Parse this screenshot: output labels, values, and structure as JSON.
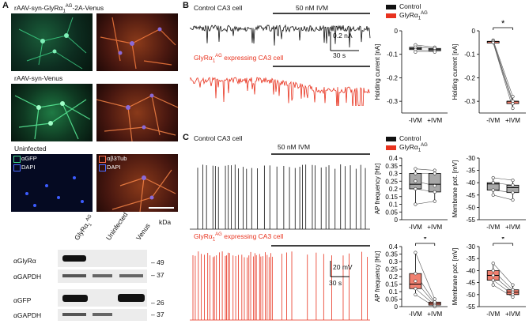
{
  "panel_a": {
    "label": "A",
    "rows": [
      {
        "title": "rAAV-syn-GlyRα1AG-2A-Venus"
      },
      {
        "title": "rAAV-syn-Venus"
      },
      {
        "title": "Uninfected"
      }
    ],
    "legend_green": "αGFP",
    "legend_dapi": "DAPI",
    "legend_red": "αβ3Tub",
    "legend_dapi2": "DAPI",
    "blot": {
      "lanes": [
        "GlyRα1AG",
        "Uninfected",
        "Venus"
      ],
      "kda_label": "kDa",
      "rows": [
        {
          "label": "αGlyRα",
          "marker": "49"
        },
        {
          "label": "αGAPDH",
          "marker": "37"
        },
        {
          "label": "αGFP",
          "marker": "26"
        },
        {
          "label": "αGAPDH",
          "marker": "37"
        }
      ]
    }
  },
  "panel_b": {
    "label": "B",
    "trace1_label": "Control CA3 cell",
    "trace2_label": "GlyRα1AG expressing CA3 cell",
    "drug_label": "50 nM IVM",
    "scale_y": "0.2 nA",
    "scale_x": "30 s",
    "legend_control": "Control",
    "legend_glyr": "GlyRα1AG",
    "ylabel": "Holding current [nA]",
    "star": "*"
  },
  "panel_c": {
    "label": "C",
    "trace1_label": "Control CA3 cell",
    "trace2_label": "GlyRα1AG expressing CA3 cell",
    "drug_label": "50 nM IVM",
    "scale_y": "20 mV",
    "scale_x": "30 s",
    "legend_control": "Control",
    "legend_glyr": "GlyRα1AG",
    "ylabel_freq": "AP frequency [Hz]",
    "ylabel_mem": "Membrane pot. [mV]",
    "star1": "*",
    "star2": "*"
  },
  "colors": {
    "control": "#111111",
    "glyr": "#e8321e",
    "box_gray": "#a8a8a8",
    "box_red": "#f08070"
  },
  "chart_data": [
    {
      "type": "box",
      "ylabel": "Holding current [nA]",
      "categories": [
        "-IVM",
        "+IVM"
      ],
      "ylim": [
        -0.35,
        0.0
      ],
      "yticks": [
        0.0,
        -0.1,
        -0.2,
        -0.3
      ],
      "series": [
        {
          "name": "Control",
          "values": [
            -0.075,
            -0.08
          ],
          "points_pre": [
            -0.06,
            -0.07,
            -0.08,
            -0.09
          ],
          "points_post": [
            -0.07,
            -0.075,
            -0.085,
            -0.09
          ]
        }
      ]
    },
    {
      "type": "box",
      "ylabel": "Holding current [nA]",
      "categories": [
        "-IVM",
        "+IVM"
      ],
      "ylim": [
        -0.35,
        0.0
      ],
      "yticks": [
        0.0,
        -0.1,
        -0.2,
        -0.3
      ],
      "series": [
        {
          "name": "GlyRα1AG",
          "values": [
            -0.045,
            -0.3
          ],
          "points_pre": [
            -0.04,
            -0.045,
            -0.05,
            -0.05
          ],
          "points_post": [
            -0.28,
            -0.3,
            -0.31,
            -0.33
          ]
        }
      ]
    },
    {
      "type": "box",
      "ylabel": "AP frequency [Hz]",
      "categories": [
        "-IVM",
        "+IVM"
      ],
      "ylim": [
        0.0,
        0.4
      ],
      "yticks": [
        0.0,
        0.05,
        0.1,
        0.15,
        0.2,
        0.25,
        0.3,
        0.35,
        0.4
      ],
      "series": [
        {
          "name": "Control",
          "values": [
            0.23,
            0.23
          ],
          "points_pre": [
            0.1,
            0.2,
            0.25,
            0.3,
            0.33
          ],
          "points_post": [
            0.12,
            0.18,
            0.22,
            0.3,
            0.32
          ]
        }
      ]
    },
    {
      "type": "box",
      "ylabel": "Membrane pot. [mV]",
      "categories": [
        "-IVM",
        "+IVM"
      ],
      "ylim": [
        -55,
        -30
      ],
      "yticks": [
        -30,
        -35,
        -40,
        -45,
        -50,
        -55
      ],
      "series": [
        {
          "name": "Control",
          "values": [
            -40.5,
            -42
          ],
          "points_pre": [
            -38,
            -40,
            -43,
            -45
          ],
          "points_post": [
            -39,
            -41,
            -44,
            -47
          ]
        }
      ]
    },
    {
      "type": "box",
      "ylabel": "AP frequency [Hz]",
      "categories": [
        "-IVM",
        "+IVM"
      ],
      "ylim": [
        0.0,
        0.4
      ],
      "yticks": [
        0.0,
        0.05,
        0.1,
        0.15,
        0.2,
        0.25,
        0.3,
        0.35,
        0.4
      ],
      "series": [
        {
          "name": "GlyRα1AG",
          "values": [
            0.15,
            0.02
          ],
          "points_pre": [
            0.08,
            0.12,
            0.17,
            0.22,
            0.36
          ],
          "points_post": [
            0.0,
            0.01,
            0.02,
            0.03,
            0.05
          ]
        }
      ]
    },
    {
      "type": "box",
      "ylabel": "Membrane pot. [mV]",
      "categories": [
        "-IVM",
        "+IVM"
      ],
      "ylim": [
        -55,
        -30
      ],
      "yticks": [
        -30,
        -35,
        -40,
        -45,
        -50,
        -55
      ],
      "series": [
        {
          "name": "GlyRα1AG",
          "values": [
            -42,
            -49
          ],
          "points_pre": [
            -37,
            -40,
            -42,
            -44,
            -46
          ],
          "points_post": [
            -46,
            -48,
            -49,
            -50,
            -51
          ]
        }
      ]
    }
  ]
}
